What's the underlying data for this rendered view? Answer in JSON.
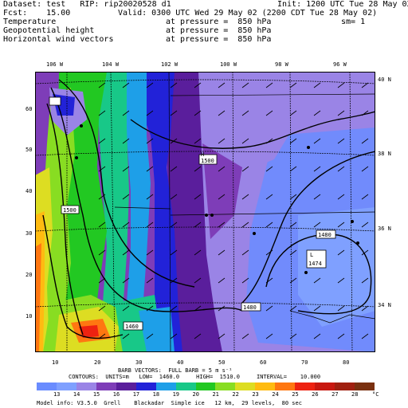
{
  "header": {
    "line1_left": "Dataset: test   RIP: rip20020528 d1",
    "line1_right": "Init: 1200 UTC Tue 28 May 02",
    "line2_left": "Fcst:    15.00",
    "line2_right": "Valid: 0300 UTC Wed 29 May 02 (2200 CDT Tue 28 May 02)",
    "line3_left": "Temperature",
    "line3_mid": "at pressure =  850 hPa",
    "line3_right": "sm= 1",
    "line4_left": "Geopotential height",
    "line4_mid": "at pressure =  850 hPa",
    "line5_left": "Horizontal wind vectors",
    "line5_mid": "at pressure =  850 hPa"
  },
  "map": {
    "lon_labels": [
      "106 W",
      "104 W",
      "102 W",
      "100 W",
      "98 W",
      "96 W"
    ],
    "lat_labels": [
      "40 N",
      "38 N",
      "36 N",
      "34 N"
    ],
    "x_ticks": [
      "10",
      "20",
      "30",
      "40",
      "50",
      "60",
      "70",
      "80"
    ],
    "y_ticks": [
      "60",
      "50",
      "40",
      "30",
      "20",
      "10"
    ],
    "contour_labels": {
      "c1": "1500",
      "c2": "1500",
      "c3": "1480",
      "c4": "1480",
      "c5": "1460",
      "low_letter": "L",
      "low_value": "1474",
      "high_letter": "H"
    }
  },
  "footer": {
    "barb_line": "BARB VECTORS:  FULL BARB = 5 m s⁻¹",
    "contour_line": "CONTOURS:  UNITS=m   LOW=  1460.0     HIGH=  1510.0     INTERVAL=    10.000",
    "colorbar_labels": [
      "13",
      "14",
      "15",
      "16",
      "17",
      "18",
      "19",
      "20",
      "21",
      "22",
      "23",
      "24",
      "25",
      "26",
      "27",
      "28"
    ],
    "unit": "°C",
    "model_info": "Model info: V3.5.0  Grell    Blackadar  Simple ice   12 km,  29 levels,  80 sec"
  },
  "colors": {
    "colorbar": [
      "#6a8cff",
      "#7fa0ff",
      "#9a84e6",
      "#7e3db8",
      "#5a1e9c",
      "#2222d8",
      "#1e9fe8",
      "#18c888",
      "#22c822",
      "#88dd22",
      "#dddd22",
      "#ffbb11",
      "#ff7711",
      "#ee2211",
      "#c81810",
      "#a02010",
      "#7a3010"
    ]
  }
}
